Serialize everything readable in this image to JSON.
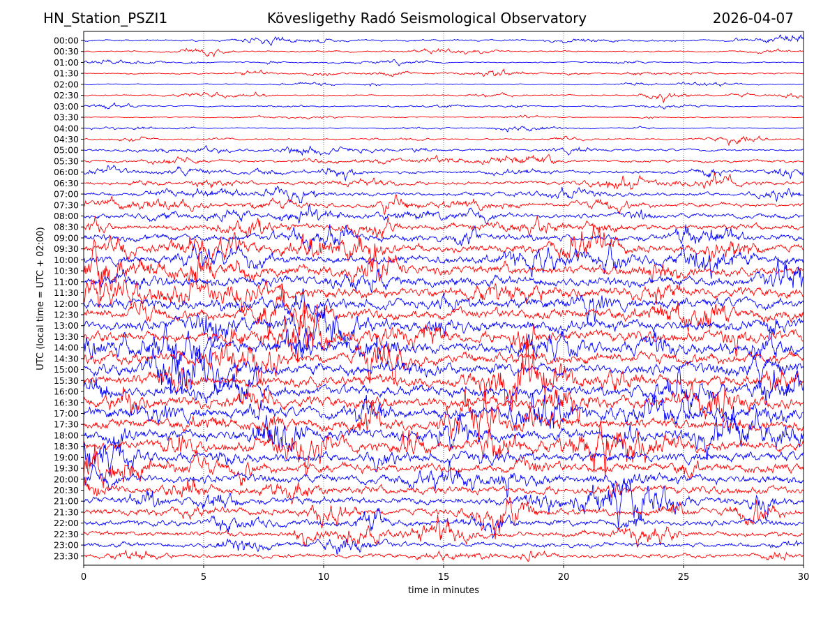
{
  "header": {
    "station": "HN_Station_PSZI1",
    "observatory": "Kövesligethy Radó Seismological Observatory",
    "date": "2026-04-07"
  },
  "chart_data": {
    "type": "line",
    "title": "Kövesligethy Radó Seismological Observatory",
    "xlabel": "time in minutes",
    "ylabel": "UTC (local time = UTC + 02:00)",
    "xlim": [
      0,
      30
    ],
    "x_ticks": [
      0,
      5,
      10,
      15,
      20,
      25,
      30
    ],
    "grid": "vertical dotted lines at each x tick",
    "row_labels": [
      "00:00",
      "00:30",
      "01:00",
      "01:30",
      "02:00",
      "02:30",
      "03:00",
      "03:30",
      "04:00",
      "04:30",
      "05:00",
      "05:30",
      "06:00",
      "06:30",
      "07:00",
      "07:30",
      "08:00",
      "08:30",
      "09:00",
      "09:30",
      "10:00",
      "10:30",
      "11:00",
      "11:30",
      "12:00",
      "12:30",
      "13:00",
      "13:30",
      "14:00",
      "14:30",
      "15:00",
      "15:30",
      "16:00",
      "16:30",
      "17:00",
      "17:30",
      "18:00",
      "18:30",
      "19:00",
      "19:30",
      "20:00",
      "20:30",
      "21:00",
      "21:30",
      "22:00",
      "22:30",
      "23:00",
      "23:30"
    ],
    "row_colors": [
      "#0000ff",
      "#ff0000"
    ],
    "relative_amplitude": [
      0.6,
      0.45,
      0.35,
      0.45,
      0.35,
      0.4,
      0.35,
      0.3,
      0.3,
      0.45,
      0.7,
      0.8,
      1.0,
      1.1,
      1.2,
      1.3,
      1.5,
      1.8,
      2.2,
      2.4,
      2.7,
      2.9,
      3.0,
      3.1,
      3.2,
      3.3,
      3.4,
      3.4,
      3.5,
      3.5,
      3.5,
      3.5,
      3.4,
      3.4,
      3.3,
      3.3,
      3.2,
      3.1,
      3.0,
      2.9,
      2.7,
      2.5,
      2.3,
      2.1,
      1.9,
      1.7,
      1.5,
      1.3
    ]
  }
}
